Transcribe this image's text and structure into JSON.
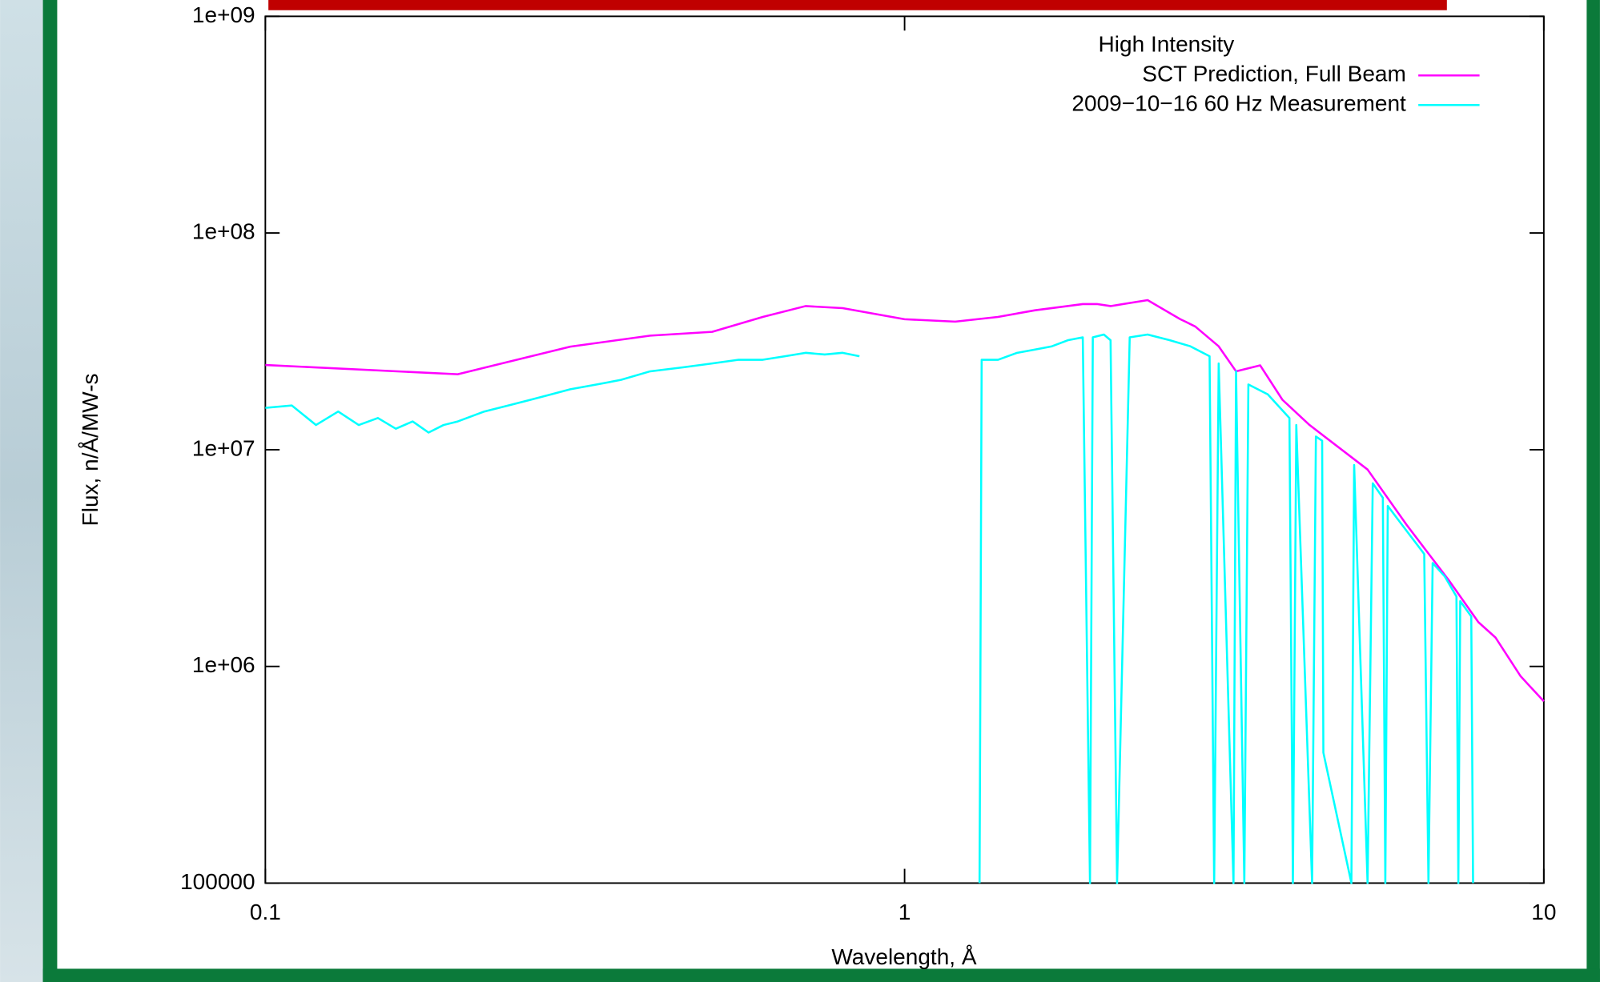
{
  "chart_data": {
    "type": "line",
    "xlabel": "Wavelength, Å",
    "ylabel": "Flux, n/Å/MW-s",
    "legend_title": "High Intensity",
    "legend": "top-right",
    "xscale": "log",
    "yscale": "log",
    "xlim": [
      0.1,
      10
    ],
    "ylim": [
      100000,
      1000000000
    ],
    "xticks": [
      0.1,
      1,
      10
    ],
    "yticks": [
      100000,
      {
        "value": 1000000,
        "label": "1e+06"
      },
      {
        "value": 10000000,
        "label": "1e+07"
      },
      {
        "value": 100000000,
        "label": "1e+08"
      },
      {
        "value": 1000000000,
        "label": "1e+09"
      }
    ],
    "series": [
      {
        "name": "SCT Prediction, Full Beam",
        "color": "#ff00ff",
        "x": [
          0.1,
          0.2,
          0.3,
          0.4,
          0.5,
          0.6,
          0.7,
          0.8,
          1.0,
          1.2,
          1.4,
          1.6,
          1.9,
          2.0,
          2.1,
          2.4,
          2.7,
          2.75,
          2.85,
          3.1,
          3.3,
          3.6,
          3.9,
          4.3,
          5.3,
          6.1,
          7.1,
          7.9,
          8.4,
          9.2,
          10
        ],
        "values": [
          24600000,
          22300000,
          29900000,
          33600000,
          35000000,
          41000000,
          46000000,
          45000000,
          40000000,
          39000000,
          41000000,
          44000000,
          47000000,
          47000000,
          46000000,
          49000000,
          40000000,
          39000000,
          37000000,
          30000000,
          23000000,
          24500000,
          17000000,
          13000000,
          8100000,
          4500000,
          2500000,
          1600000,
          1360000,
          900000,
          690000
        ]
      },
      {
        "name": "2009−10−16 60 Hz Measurement",
        "color": "#00ffff",
        "x": [
          0.1,
          0.11,
          0.12,
          0.13,
          0.14,
          0.15,
          0.16,
          0.17,
          0.18,
          0.19,
          0.2,
          0.22,
          0.24,
          0.26,
          0.28,
          0.3,
          0.33,
          0.36,
          0.4,
          0.45,
          0.5,
          0.55,
          0.6,
          0.65,
          0.7,
          0.75,
          0.8,
          0.85,
          1.0,
          1.31,
          1.32,
          1.4,
          1.5,
          1.6,
          1.7,
          1.8,
          1.9,
          1.95,
          1.97,
          2.05,
          2.1,
          2.15,
          2.25,
          2.4,
          2.6,
          2.8,
          3.0,
          3.05,
          3.1,
          3.27,
          3.3,
          3.4,
          3.45,
          3.7,
          4.0,
          4.05,
          4.1,
          4.34,
          4.4,
          4.5,
          4.52,
          5.0,
          5.05,
          5.3,
          5.4,
          5.6,
          5.65,
          5.7,
          6.0,
          6.5,
          6.6,
          6.7,
          7.0,
          7.3,
          7.35,
          7.4,
          7.7,
          7.75
        ],
        "values": [
          15600000,
          16000000,
          13000000,
          15000000,
          13000000,
          14000000,
          12500000,
          13500000,
          12000000,
          13000000,
          13500000,
          15000000,
          16000000,
          17000000,
          18000000,
          19000000,
          20000000,
          21000000,
          23000000,
          24000000,
          25000000,
          26000000,
          26000000,
          27000000,
          28000000,
          27500000,
          28000000,
          27000000,
          null,
          100000,
          26000000,
          26000000,
          28000000,
          29000000,
          30000000,
          32000000,
          33000000,
          100000,
          33000000,
          34000000,
          32000000,
          100000,
          33000000,
          34000000,
          32000000,
          30000000,
          27000000,
          100000,
          25000000,
          100000,
          23000000,
          100000,
          20000000,
          18000000,
          14000000,
          100000,
          13000000,
          100000,
          11500000,
          11000000,
          400000,
          100000,
          8500000,
          100000,
          7000000,
          6000000,
          100000,
          5500000,
          4500000,
          3300000,
          100000,
          3000000,
          2600000,
          2100000,
          100000,
          2000000,
          1700000,
          100000
        ]
      }
    ]
  }
}
